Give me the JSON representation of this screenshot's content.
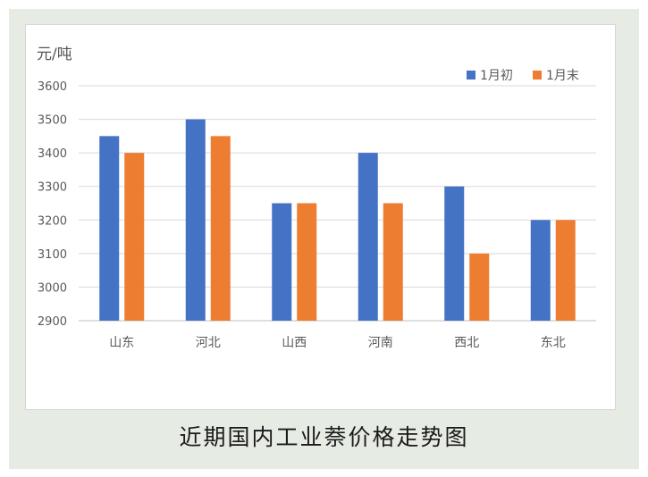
{
  "caption": "近期国内工业萘价格走势图",
  "chart_data": {
    "type": "bar",
    "ylabel": "元/吨",
    "categories": [
      "山东",
      "河北",
      "山西",
      "河南",
      "西北",
      "东北"
    ],
    "series": [
      {
        "name": "1月初",
        "color": "#4472c4",
        "values": [
          3450,
          3500,
          3250,
          3400,
          3300,
          3200
        ]
      },
      {
        "name": "1月末",
        "color": "#ed7d31",
        "values": [
          3400,
          3450,
          3250,
          3250,
          3100,
          3200
        ]
      }
    ],
    "ylim": [
      2900,
      3600
    ],
    "yticks": [
      2900,
      3000,
      3100,
      3200,
      3300,
      3400,
      3500,
      3600
    ],
    "grid": true,
    "legend_position": "top-right"
  }
}
